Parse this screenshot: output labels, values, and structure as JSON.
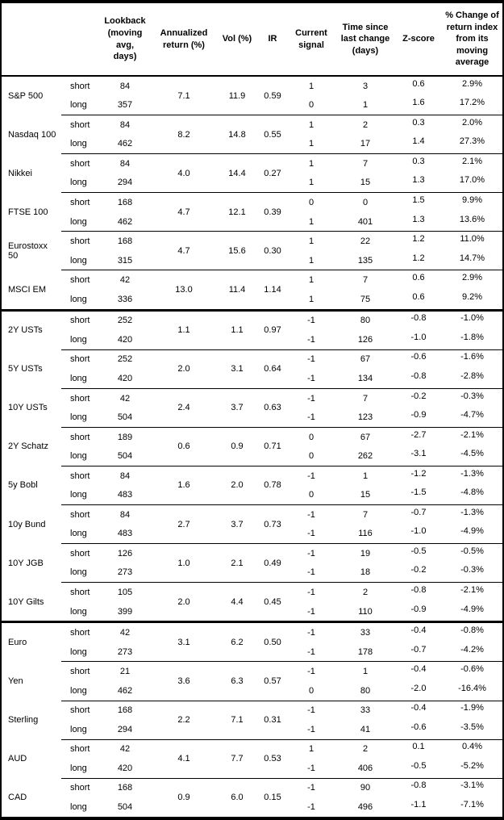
{
  "table": {
    "headers": {
      "name": "",
      "leg": "",
      "lookback": "Lookback (moving avg, days)",
      "annualized": "Annualized return (%)",
      "vol": "Vol (%)",
      "ir": "IR",
      "signal": "Current signal",
      "time": "Time since last change (days)",
      "zscore": "Z-score",
      "pct": "% Change of return index from its moving average"
    },
    "legs": {
      "short": "short",
      "long": "long"
    },
    "groups": [
      {
        "instruments": [
          {
            "name": "S&P 500",
            "annualized": "7.1",
            "vol": "11.9",
            "ir": "0.59",
            "short": {
              "lookback": "84",
              "signal": "1",
              "time": "3",
              "z": "0.6",
              "pct": "2.9%"
            },
            "long": {
              "lookback": "357",
              "signal": "0",
              "time": "1",
              "z": "1.6",
              "pct": "17.2%"
            }
          },
          {
            "name": "Nasdaq 100",
            "annualized": "8.2",
            "vol": "14.8",
            "ir": "0.55",
            "short": {
              "lookback": "84",
              "signal": "1",
              "time": "2",
              "z": "0.3",
              "pct": "2.0%"
            },
            "long": {
              "lookback": "462",
              "signal": "1",
              "time": "17",
              "z": "1.4",
              "pct": "27.3%"
            }
          },
          {
            "name": "Nikkei",
            "annualized": "4.0",
            "vol": "14.4",
            "ir": "0.27",
            "short": {
              "lookback": "84",
              "signal": "1",
              "time": "7",
              "z": "0.3",
              "pct": "2.1%"
            },
            "long": {
              "lookback": "294",
              "signal": "1",
              "time": "15",
              "z": "1.3",
              "pct": "17.0%"
            }
          },
          {
            "name": "FTSE 100",
            "annualized": "4.7",
            "vol": "12.1",
            "ir": "0.39",
            "short": {
              "lookback": "168",
              "signal": "0",
              "time": "0",
              "z": "1.5",
              "pct": "9.9%"
            },
            "long": {
              "lookback": "462",
              "signal": "1",
              "time": "401",
              "z": "1.3",
              "pct": "13.6%"
            }
          },
          {
            "name": "Eurostoxx 50",
            "annualized": "4.7",
            "vol": "15.6",
            "ir": "0.30",
            "short": {
              "lookback": "168",
              "signal": "1",
              "time": "22",
              "z": "1.2",
              "pct": "11.0%"
            },
            "long": {
              "lookback": "315",
              "signal": "1",
              "time": "135",
              "z": "1.2",
              "pct": "14.7%"
            }
          },
          {
            "name": "MSCI EM",
            "annualized": "13.0",
            "vol": "11.4",
            "ir": "1.14",
            "short": {
              "lookback": "42",
              "signal": "1",
              "time": "7",
              "z": "0.6",
              "pct": "2.9%"
            },
            "long": {
              "lookback": "336",
              "signal": "1",
              "time": "75",
              "z": "0.6",
              "pct": "9.2%"
            }
          }
        ]
      },
      {
        "instruments": [
          {
            "name": "2Y USTs",
            "annualized": "1.1",
            "vol": "1.1",
            "ir": "0.97",
            "short": {
              "lookback": "252",
              "signal": "-1",
              "time": "80",
              "z": "-0.8",
              "pct": "-1.0%"
            },
            "long": {
              "lookback": "420",
              "signal": "-1",
              "time": "126",
              "z": "-1.0",
              "pct": "-1.8%"
            }
          },
          {
            "name": "5Y USTs",
            "annualized": "2.0",
            "vol": "3.1",
            "ir": "0.64",
            "short": {
              "lookback": "252",
              "signal": "-1",
              "time": "67",
              "z": "-0.6",
              "pct": "-1.6%"
            },
            "long": {
              "lookback": "420",
              "signal": "-1",
              "time": "134",
              "z": "-0.8",
              "pct": "-2.8%"
            }
          },
          {
            "name": "10Y USTs",
            "annualized": "2.4",
            "vol": "3.7",
            "ir": "0.63",
            "short": {
              "lookback": "42",
              "signal": "-1",
              "time": "7",
              "z": "-0.2",
              "pct": "-0.3%"
            },
            "long": {
              "lookback": "504",
              "signal": "-1",
              "time": "123",
              "z": "-0.9",
              "pct": "-4.7%"
            }
          },
          {
            "name": "2Y Schatz",
            "annualized": "0.6",
            "vol": "0.9",
            "ir": "0.71",
            "short": {
              "lookback": "189",
              "signal": "0",
              "time": "67",
              "z": "-2.7",
              "pct": "-2.1%"
            },
            "long": {
              "lookback": "504",
              "signal": "0",
              "time": "262",
              "z": "-3.1",
              "pct": "-4.5%"
            }
          },
          {
            "name": "5y Bobl",
            "annualized": "1.6",
            "vol": "2.0",
            "ir": "0.78",
            "short": {
              "lookback": "84",
              "signal": "-1",
              "time": "1",
              "z": "-1.2",
              "pct": "-1.3%"
            },
            "long": {
              "lookback": "483",
              "signal": "0",
              "time": "15",
              "z": "-1.5",
              "pct": "-4.8%"
            }
          },
          {
            "name": "10y Bund",
            "annualized": "2.7",
            "vol": "3.7",
            "ir": "0.73",
            "short": {
              "lookback": "84",
              "signal": "-1",
              "time": "7",
              "z": "-0.7",
              "pct": "-1.3%"
            },
            "long": {
              "lookback": "483",
              "signal": "-1",
              "time": "116",
              "z": "-1.0",
              "pct": "-4.9%"
            }
          },
          {
            "name": "10Y JGB",
            "annualized": "1.0",
            "vol": "2.1",
            "ir": "0.49",
            "short": {
              "lookback": "126",
              "signal": "-1",
              "time": "19",
              "z": "-0.5",
              "pct": "-0.5%"
            },
            "long": {
              "lookback": "273",
              "signal": "-1",
              "time": "18",
              "z": "-0.2",
              "pct": "-0.3%"
            }
          },
          {
            "name": "10Y Gilts",
            "annualized": "2.0",
            "vol": "4.4",
            "ir": "0.45",
            "short": {
              "lookback": "105",
              "signal": "-1",
              "time": "2",
              "z": "-0.8",
              "pct": "-2.1%"
            },
            "long": {
              "lookback": "399",
              "signal": "-1",
              "time": "110",
              "z": "-0.9",
              "pct": "-4.9%"
            }
          }
        ]
      },
      {
        "instruments": [
          {
            "name": "Euro",
            "annualized": "3.1",
            "vol": "6.2",
            "ir": "0.50",
            "short": {
              "lookback": "42",
              "signal": "-1",
              "time": "33",
              "z": "-0.4",
              "pct": "-0.8%"
            },
            "long": {
              "lookback": "273",
              "signal": "-1",
              "time": "178",
              "z": "-0.7",
              "pct": "-4.2%"
            }
          },
          {
            "name": "Yen",
            "annualized": "3.6",
            "vol": "6.3",
            "ir": "0.57",
            "short": {
              "lookback": "21",
              "signal": "-1",
              "time": "1",
              "z": "-0.4",
              "pct": "-0.6%"
            },
            "long": {
              "lookback": "462",
              "signal": "0",
              "time": "80",
              "z": "-2.0",
              "pct": "-16.4%"
            }
          },
          {
            "name": "Sterling",
            "annualized": "2.2",
            "vol": "7.1",
            "ir": "0.31",
            "short": {
              "lookback": "168",
              "signal": "-1",
              "time": "33",
              "z": "-0.4",
              "pct": "-1.9%"
            },
            "long": {
              "lookback": "294",
              "signal": "-1",
              "time": "41",
              "z": "-0.6",
              "pct": "-3.5%"
            }
          },
          {
            "name": "AUD",
            "annualized": "4.1",
            "vol": "7.7",
            "ir": "0.53",
            "short": {
              "lookback": "42",
              "signal": "1",
              "time": "2",
              "z": "0.1",
              "pct": "0.4%"
            },
            "long": {
              "lookback": "420",
              "signal": "-1",
              "time": "406",
              "z": "-0.5",
              "pct": "-5.2%"
            }
          },
          {
            "name": "CAD",
            "annualized": "0.9",
            "vol": "6.0",
            "ir": "0.15",
            "short": {
              "lookback": "168",
              "signal": "-1",
              "time": "90",
              "z": "-0.8",
              "pct": "-3.1%"
            },
            "long": {
              "lookback": "504",
              "signal": "-1",
              "time": "496",
              "z": "-1.1",
              "pct": "-7.1%"
            }
          }
        ]
      }
    ]
  }
}
